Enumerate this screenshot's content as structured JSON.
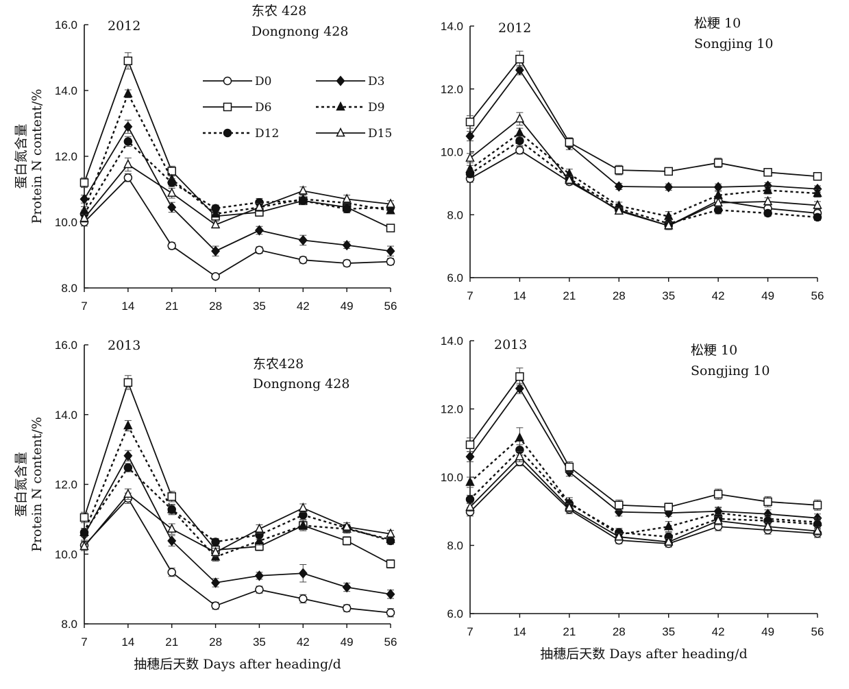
{
  "chart_data": [
    {
      "type": "line",
      "year": "2012",
      "variety_cn": "东农 428",
      "variety_en": "Dongnong 428",
      "ylabel_cn": "蛋白氮含量",
      "ylabel_en": "Protein N content/%",
      "xlabel": "",
      "ylim": [
        8.0,
        16.0
      ],
      "yticks": [
        "8.0",
        "10.0",
        "12.0",
        "14.0",
        "16.0"
      ],
      "x": [
        7,
        14,
        21,
        28,
        35,
        42,
        49,
        56
      ],
      "series": [
        {
          "name": "D0",
          "values": [
            10.0,
            11.35,
            9.28,
            8.35,
            9.15,
            8.85,
            8.75,
            8.8
          ],
          "err": [
            0.12,
            0.12,
            0.1,
            0.08,
            0.1,
            0.1,
            0.1,
            0.1
          ]
        },
        {
          "name": "D3",
          "values": [
            10.7,
            12.9,
            10.45,
            9.12,
            9.75,
            9.45,
            9.3,
            9.12
          ],
          "err": [
            0.12,
            0.2,
            0.15,
            0.15,
            0.12,
            0.15,
            0.1,
            0.15
          ]
        },
        {
          "name": "D6",
          "values": [
            11.2,
            14.9,
            11.55,
            10.18,
            10.3,
            10.65,
            10.45,
            9.82
          ],
          "err": [
            0.15,
            0.25,
            0.15,
            0.1,
            0.12,
            0.12,
            0.15,
            0.1
          ]
        },
        {
          "name": "D9",
          "values": [
            10.35,
            13.9,
            11.3,
            10.25,
            10.45,
            10.7,
            10.58,
            10.35
          ],
          "err": [
            0.12,
            0.12,
            0.12,
            0.1,
            0.12,
            0.12,
            0.12,
            0.1
          ]
        },
        {
          "name": "D12",
          "values": [
            10.25,
            12.45,
            11.2,
            10.42,
            10.6,
            10.65,
            10.4,
            10.45
          ],
          "err": [
            0.12,
            0.15,
            0.12,
            0.1,
            0.12,
            0.12,
            0.12,
            0.1
          ]
        },
        {
          "name": "D15",
          "values": [
            10.12,
            11.75,
            10.88,
            9.92,
            10.45,
            10.95,
            10.7,
            10.55
          ],
          "err": [
            0.12,
            0.2,
            0.15,
            0.1,
            0.12,
            0.12,
            0.12,
            0.1
          ]
        }
      ]
    },
    {
      "type": "line",
      "year": "2012",
      "variety_cn": "松粳 10",
      "variety_en": "Songjing 10",
      "ylabel_cn": "",
      "ylabel_en": "",
      "xlabel": "",
      "ylim": [
        6.0,
        14.0
      ],
      "yticks": [
        "6.0",
        "8.0",
        "10.0",
        "12.0",
        "14.0"
      ],
      "x": [
        7,
        14,
        21,
        28,
        35,
        42,
        49,
        56
      ],
      "series": [
        {
          "name": "D0",
          "values": [
            9.15,
            10.05,
            9.05,
            8.15,
            7.65,
            8.45,
            8.2,
            8.05
          ],
          "err": [
            0.12,
            0.12,
            0.1,
            0.1,
            0.12,
            0.12,
            0.12,
            0.1
          ]
        },
        {
          "name": "D3",
          "values": [
            10.5,
            12.6,
            10.22,
            8.9,
            8.88,
            8.88,
            8.92,
            8.82
          ],
          "err": [
            0.15,
            0.15,
            0.15,
            0.1,
            0.1,
            0.1,
            0.1,
            0.1
          ]
        },
        {
          "name": "D6",
          "values": [
            10.95,
            12.95,
            10.3,
            9.42,
            9.38,
            9.65,
            9.35,
            9.22
          ],
          "err": [
            0.2,
            0.25,
            0.15,
            0.15,
            0.1,
            0.15,
            0.12,
            0.12
          ]
        },
        {
          "name": "D9",
          "values": [
            9.45,
            10.6,
            9.3,
            8.28,
            7.95,
            8.62,
            8.78,
            8.68
          ],
          "err": [
            0.12,
            0.15,
            0.15,
            0.12,
            0.15,
            0.12,
            0.12,
            0.12
          ]
        },
        {
          "name": "D12",
          "values": [
            9.3,
            10.35,
            9.15,
            8.2,
            7.72,
            8.15,
            8.05,
            7.92
          ],
          "err": [
            0.12,
            0.15,
            0.12,
            0.1,
            0.12,
            0.12,
            0.1,
            0.1
          ]
        },
        {
          "name": "D15",
          "values": [
            9.8,
            11.05,
            9.1,
            8.12,
            7.65,
            8.38,
            8.42,
            8.3
          ],
          "err": [
            0.15,
            0.2,
            0.12,
            0.1,
            0.12,
            0.12,
            0.12,
            0.12
          ]
        }
      ]
    },
    {
      "type": "line",
      "year": "2013",
      "variety_cn": "东农428",
      "variety_en": "Dongnong 428",
      "ylabel_cn": "蛋白氮含量",
      "ylabel_en": "Protein N content/%",
      "xlabel": "抽穗后天数 Days after heading/d",
      "ylim": [
        8.0,
        16.0
      ],
      "yticks": [
        "8.0",
        "10.0",
        "12.0",
        "14.0",
        "16.0"
      ],
      "x": [
        7,
        14,
        21,
        28,
        35,
        42,
        49,
        56
      ],
      "series": [
        {
          "name": "D0",
          "values": [
            10.25,
            11.6,
            9.48,
            8.52,
            8.98,
            8.72,
            8.45,
            8.32
          ],
          "err": [
            0.12,
            0.15,
            0.12,
            0.1,
            0.1,
            0.12,
            0.1,
            0.12
          ]
        },
        {
          "name": "D3",
          "values": [
            10.55,
            12.82,
            10.38,
            9.18,
            9.38,
            9.45,
            9.05,
            8.85
          ],
          "err": [
            0.15,
            0.15,
            0.15,
            0.12,
            0.1,
            0.25,
            0.12,
            0.12
          ]
        },
        {
          "name": "D6",
          "values": [
            11.05,
            14.92,
            11.65,
            10.12,
            10.22,
            10.82,
            10.38,
            9.72
          ],
          "err": [
            0.15,
            0.2,
            0.15,
            0.12,
            0.12,
            0.15,
            0.12,
            0.12
          ]
        },
        {
          "name": "D9",
          "values": [
            10.62,
            13.68,
            11.28,
            9.92,
            10.38,
            10.82,
            10.72,
            10.42
          ],
          "err": [
            0.12,
            0.15,
            0.15,
            0.12,
            0.12,
            0.12,
            0.12,
            0.1
          ]
        },
        {
          "name": "D12",
          "values": [
            10.62,
            12.48,
            11.28,
            10.35,
            10.55,
            11.12,
            10.75,
            10.38
          ],
          "err": [
            0.12,
            0.12,
            0.12,
            0.1,
            0.12,
            0.12,
            0.1,
            0.1
          ]
        },
        {
          "name": "D15",
          "values": [
            10.22,
            11.72,
            10.72,
            10.05,
            10.72,
            11.32,
            10.78,
            10.58
          ],
          "err": [
            0.12,
            0.15,
            0.15,
            0.12,
            0.12,
            0.12,
            0.12,
            0.1
          ]
        }
      ]
    },
    {
      "type": "line",
      "year": "2013",
      "variety_cn": "松粳 10",
      "variety_en": "Songjing 10",
      "ylabel_cn": "",
      "ylabel_en": "",
      "xlabel": "抽穗后天数 Days after heading/d",
      "ylim": [
        6.0,
        14.0
      ],
      "yticks": [
        "6.0",
        "8.0",
        "10.0",
        "12.0",
        "14.0"
      ],
      "x": [
        7,
        14,
        21,
        28,
        35,
        42,
        49,
        56
      ],
      "series": [
        {
          "name": "D0",
          "values": [
            8.98,
            10.45,
            9.05,
            8.15,
            8.05,
            8.55,
            8.45,
            8.35
          ],
          "err": [
            0.12,
            0.12,
            0.12,
            0.1,
            0.1,
            0.12,
            0.12,
            0.12
          ]
        },
        {
          "name": "D3",
          "values": [
            10.6,
            12.6,
            10.15,
            8.98,
            8.95,
            9.0,
            8.92,
            8.8
          ],
          "err": [
            0.15,
            0.15,
            0.12,
            0.12,
            0.1,
            0.12,
            0.12,
            0.12
          ]
        },
        {
          "name": "D6",
          "values": [
            10.95,
            12.95,
            10.3,
            9.18,
            9.12,
            9.5,
            9.28,
            9.18
          ],
          "err": [
            0.2,
            0.25,
            0.15,
            0.15,
            0.12,
            0.15,
            0.15,
            0.15
          ]
        },
        {
          "name": "D9",
          "values": [
            9.85,
            11.15,
            9.25,
            8.32,
            8.55,
            8.95,
            8.78,
            8.68
          ],
          "err": [
            0.15,
            0.3,
            0.15,
            0.12,
            0.15,
            0.15,
            0.12,
            0.12
          ]
        },
        {
          "name": "D12",
          "values": [
            9.35,
            10.8,
            9.22,
            8.38,
            8.25,
            8.78,
            8.72,
            8.62
          ],
          "err": [
            0.12,
            0.15,
            0.12,
            0.12,
            0.12,
            0.12,
            0.12,
            0.12
          ]
        },
        {
          "name": "D15",
          "values": [
            9.12,
            10.6,
            9.1,
            8.25,
            8.1,
            8.72,
            8.55,
            8.42
          ],
          "err": [
            0.12,
            0.15,
            0.12,
            0.1,
            0.1,
            0.12,
            0.12,
            0.12
          ]
        }
      ]
    }
  ],
  "legend": {
    "placement": "inside top-right of the 2012 Dongnong 428 panel",
    "entries": [
      {
        "name": "D0",
        "line": "solid",
        "marker": "circle-open"
      },
      {
        "name": "D3",
        "line": "solid",
        "marker": "diamond-filled"
      },
      {
        "name": "D6",
        "line": "solid",
        "marker": "square-open"
      },
      {
        "name": "D9",
        "line": "dotted",
        "marker": "triangle-filled"
      },
      {
        "name": "D12",
        "line": "dotted",
        "marker": "circle-filled"
      },
      {
        "name": "D15",
        "line": "solid",
        "marker": "triangle-open"
      }
    ]
  },
  "colors": {
    "ink": "#111111",
    "background": "#ffffff"
  }
}
